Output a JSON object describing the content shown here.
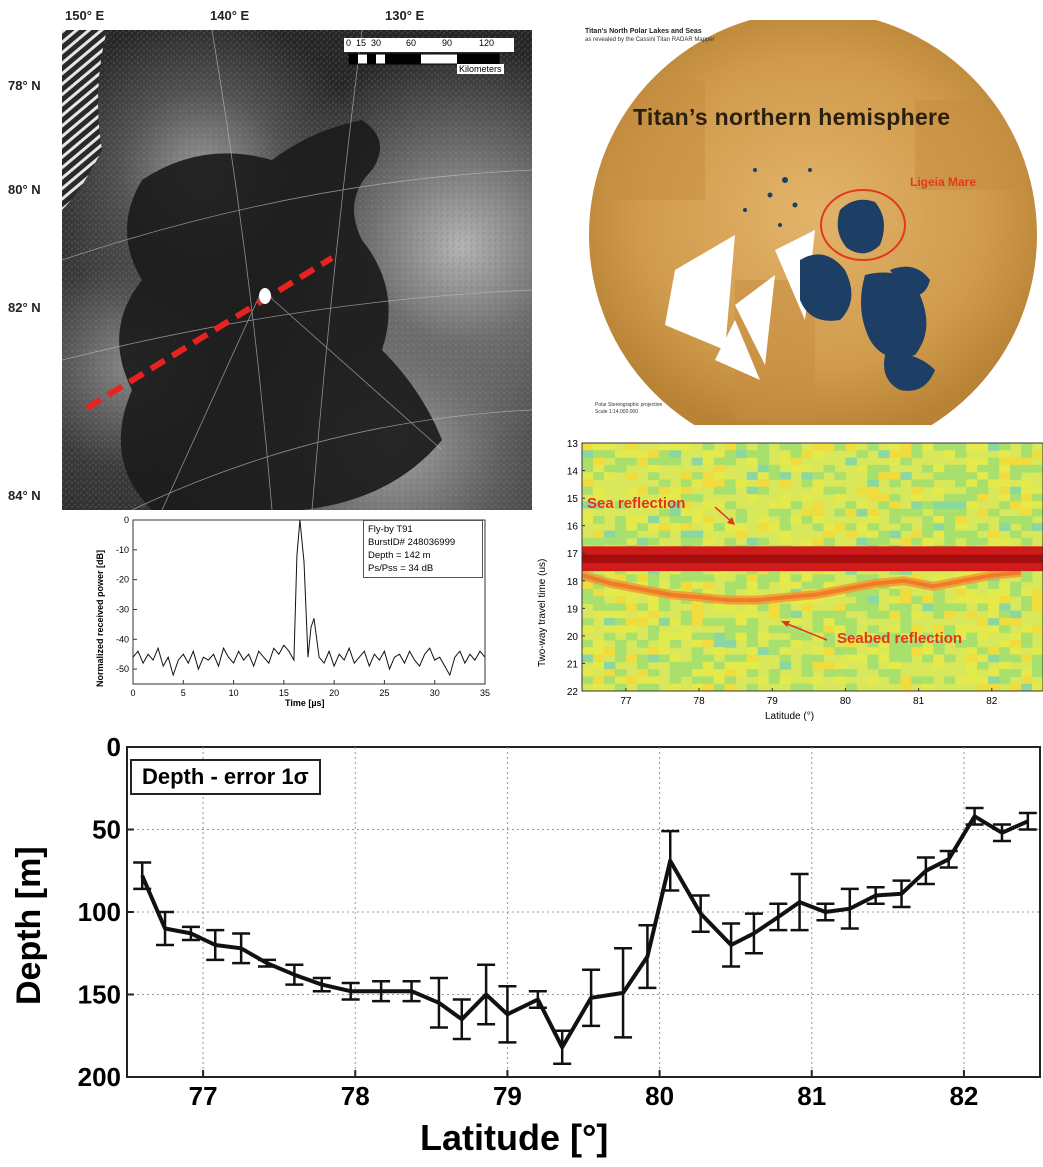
{
  "radar_map": {
    "lon_labels": [
      "150° E",
      "140° E",
      "130° E"
    ],
    "lat_labels": [
      "78° N",
      "80° N",
      "82° N",
      "84° N"
    ],
    "scale_ticks": [
      "0",
      "15",
      "30",
      "60",
      "90",
      "120"
    ],
    "scale_unit": "Kilometers",
    "track_color": "#e8231f"
  },
  "titan_map": {
    "header_line1": "Titan's North Polar Lakes and Seas",
    "header_line2": "as revealed by the Cassini Titan RADAR Mapper",
    "title": "Titan’s northern hemisphere",
    "feature_label": "Ligeia Mare",
    "footer_line1": "Polar Stereographic projection",
    "footer_line2": "Scale 1:14,000,000",
    "surface_color": "#d7a458",
    "lake_color": "#1d3f66",
    "label_color": "#e03a1a"
  },
  "waveform_chart": {
    "ylabel": "Normalized received power [dB]",
    "xlabel": "Time [µs]",
    "annotations": [
      "Fly-by T91",
      "BurstID# 248036999",
      "Depth = 142 m",
      "Ps/Pss = 34 dB"
    ],
    "x_ticks": [
      "0",
      "5",
      "10",
      "15",
      "20",
      "25",
      "30",
      "35"
    ],
    "y_ticks": [
      "0",
      "-10",
      "-20",
      "-30",
      "-40",
      "-50"
    ]
  },
  "radargram": {
    "ylabel": "Two-way travel time (us)",
    "xlabel": "Latitude (°)",
    "y_ticks": [
      "13",
      "14",
      "15",
      "16",
      "17",
      "18",
      "19",
      "20",
      "21",
      "22"
    ],
    "x_ticks": [
      "77",
      "78",
      "79",
      "80",
      "81",
      "82"
    ],
    "annotation_sea": "Sea reflection",
    "annotation_seabed": "Seabed reflection",
    "annotation_color": "#e53322"
  },
  "chart_data": [
    {
      "type": "line",
      "x": [
        0,
        0.5,
        1,
        1.5,
        2,
        2.5,
        3,
        3.5,
        4,
        4.5,
        5,
        5.5,
        6,
        6.5,
        7,
        7.5,
        8,
        8.5,
        9,
        9.5,
        10,
        10.5,
        11,
        11.5,
        12,
        12.5,
        13,
        13.5,
        14,
        14.5,
        15,
        15.5,
        16,
        16.3,
        16.6,
        17,
        17.4,
        17.7,
        18,
        18.5,
        19,
        19.5,
        20,
        20.5,
        21,
        21.5,
        22,
        22.5,
        23,
        23.5,
        24,
        24.5,
        25,
        25.5,
        26,
        26.5,
        27,
        27.5,
        28,
        28.5,
        29,
        29.5,
        30,
        30.5,
        31,
        31.5,
        32,
        32.5,
        33,
        33.5,
        34,
        34.5,
        35
      ],
      "values": [
        -46,
        -44,
        -48,
        -45,
        -47,
        -43,
        -49,
        -46,
        -52,
        -47,
        -45,
        -48,
        -44,
        -50,
        -46,
        -47,
        -45,
        -49,
        -43,
        -46,
        -48,
        -44,
        -47,
        -45,
        -49,
        -44,
        -46,
        -48,
        -43,
        -45,
        -42,
        -44,
        -47,
        -12,
        0,
        -14,
        -46,
        -36,
        -33,
        -46,
        -48,
        -44,
        -49,
        -45,
        -47,
        -43,
        -48,
        -46,
        -44,
        -49,
        -45,
        -47,
        -44,
        -50,
        -46,
        -45,
        -48,
        -44,
        -47,
        -49,
        -45,
        -43,
        -47,
        -46,
        -49,
        -52,
        -46,
        -44,
        -48,
        -45,
        -47,
        -44,
        -46
      ],
      "xlabel": "Time [µs]",
      "ylabel": "Normalized received power [dB]",
      "xlim": [
        0,
        35
      ],
      "ylim": [
        -55,
        0
      ],
      "grid": false
    },
    {
      "type": "heatmap",
      "xlabel": "Latitude (°)",
      "ylabel": "Two-way travel time (us)",
      "xlim": [
        76.4,
        82.7
      ],
      "ylim": [
        13,
        22
      ],
      "series": [
        {
          "name": "Sea reflection",
          "x": [
            76.4,
            82.7
          ],
          "values": [
            17.2,
            17.2
          ]
        },
        {
          "name": "Seabed reflection",
          "x": [
            76.4,
            76.8,
            77.2,
            77.6,
            78.0,
            78.4,
            78.8,
            79.2,
            79.6,
            80.0,
            80.4,
            80.8,
            81.2,
            81.6,
            82.0,
            82.4
          ],
          "values": [
            17.8,
            18.1,
            18.3,
            18.5,
            18.6,
            18.7,
            18.7,
            18.6,
            18.5,
            18.3,
            18.1,
            18.0,
            18.2,
            18.0,
            17.8,
            17.7
          ]
        }
      ]
    },
    {
      "type": "line",
      "title": "Depth - error 1σ",
      "xlabel": "Latitude [°]",
      "ylabel": "Depth [m]",
      "xlim": [
        76.5,
        82.5
      ],
      "ylim": [
        200,
        0
      ],
      "x_ticks": [
        "77",
        "78",
        "79",
        "80",
        "81",
        "82"
      ],
      "y_ticks": [
        "0",
        "50",
        "100",
        "150",
        "200"
      ],
      "grid": true,
      "x": [
        76.6,
        76.75,
        76.92,
        77.08,
        77.25,
        77.42,
        77.6,
        77.78,
        77.97,
        78.17,
        78.37,
        78.55,
        78.7,
        78.86,
        79.0,
        79.2,
        79.36,
        79.55,
        79.76,
        79.92,
        80.07,
        80.27,
        80.47,
        80.62,
        80.78,
        80.92,
        81.09,
        81.25,
        81.42,
        81.59,
        81.75,
        81.9,
        82.07,
        82.25,
        82.42
      ],
      "values": [
        78,
        110,
        113,
        120,
        122,
        131,
        138,
        144,
        148,
        148,
        148,
        155,
        165,
        150,
        162,
        153,
        182,
        152,
        149,
        127,
        69,
        101,
        120,
        113,
        103,
        94,
        100,
        98,
        90,
        89,
        75,
        68,
        42,
        52,
        45
      ],
      "errors": [
        8,
        10,
        4,
        9,
        9,
        2,
        6,
        4,
        5,
        6,
        6,
        15,
        12,
        18,
        17,
        5,
        10,
        17,
        27,
        19,
        18,
        11,
        13,
        12,
        8,
        17,
        5,
        12,
        5,
        8,
        8,
        5,
        5,
        5,
        5
      ]
    }
  ]
}
